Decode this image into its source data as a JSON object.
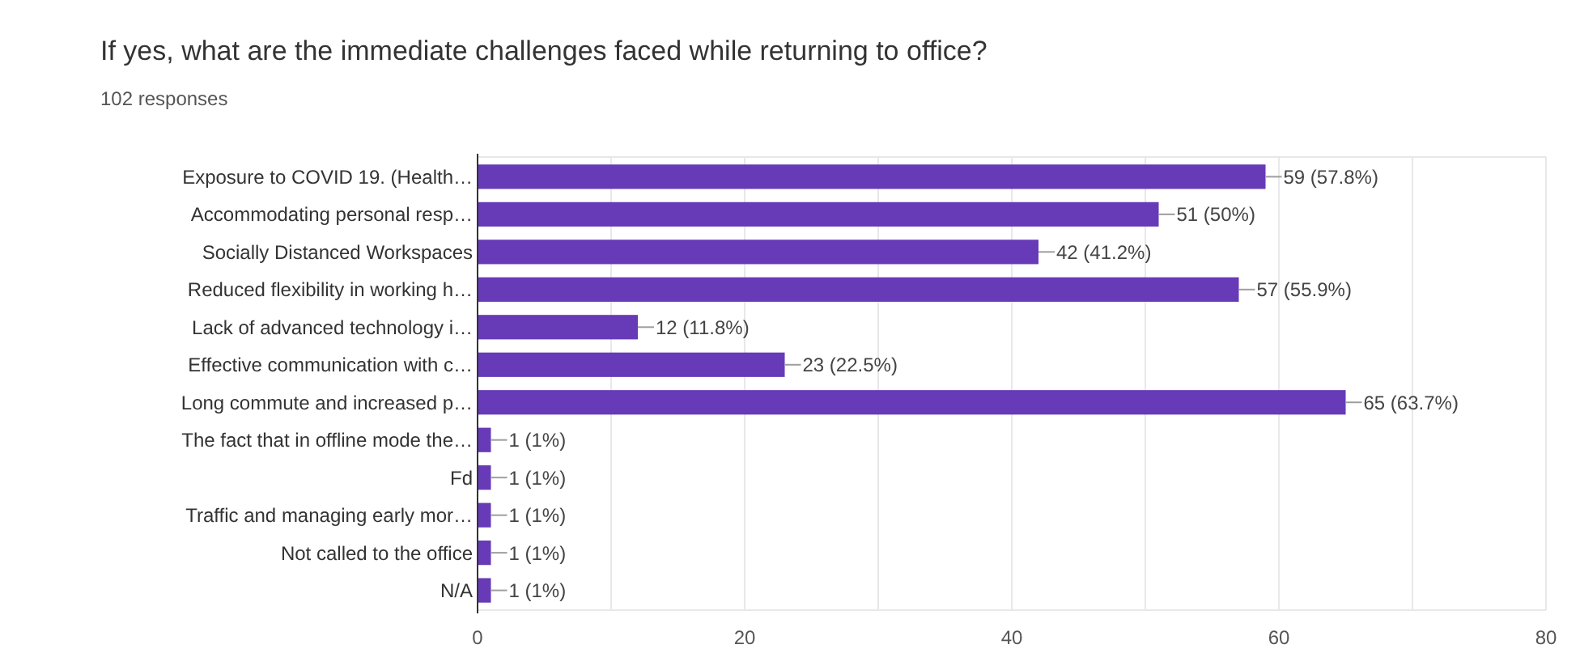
{
  "chart_data": {
    "type": "bar",
    "orientation": "horizontal",
    "title": "If yes, what are the immediate challenges faced while returning to office?",
    "subtitle": "102 responses",
    "categories": [
      "Exposure to COVID 19. (Health…",
      "Accommodating personal resp…",
      "Socially Distanced Workspaces",
      "Reduced flexibility in working h…",
      "Lack of advanced technology i…",
      "Effective communication with c…",
      "Long commute and increased p…",
      "The fact that in offline mode the…",
      "Fd",
      "Traffic and managing early mor…",
      "Not called to the office",
      "N/A"
    ],
    "values": [
      59,
      51,
      42,
      57,
      12,
      23,
      65,
      1,
      1,
      1,
      1,
      1
    ],
    "value_labels": [
      "59 (57.8%)",
      "51 (50%)",
      "42 (41.2%)",
      "57 (55.9%)",
      "12 (11.8%)",
      "23 (22.5%)",
      "65 (63.7%)",
      "1 (1%)",
      "1 (1%)",
      "1 (1%)",
      "1 (1%)",
      "1 (1%)"
    ],
    "color": "#673ab7",
    "xlim": [
      0,
      80
    ],
    "xticks": [
      0,
      {
        "value": 10,
        "label": null
      },
      20,
      {
        "value": 30,
        "label": null
      },
      40,
      {
        "value": 50,
        "label": null
      },
      60,
      {
        "value": 70,
        "label": null
      },
      80
    ],
    "grid": "x"
  }
}
